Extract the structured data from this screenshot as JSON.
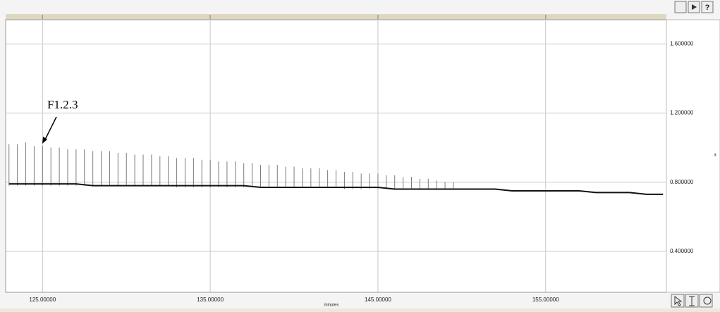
{
  "chart_data": {
    "type": "spike",
    "x_label": "minutes",
    "y_label": "a",
    "annotation": "F1.2.3",
    "xlim": [
      122.8,
      162.2
    ],
    "ylim": [
      0.163,
      1.74
    ],
    "xticks": [
      {
        "value": 125,
        "label": "125.00000"
      },
      {
        "value": 135,
        "label": "135.00000"
      },
      {
        "value": 145,
        "label": "145.00000"
      },
      {
        "value": 155,
        "label": "155.00000"
      }
    ],
    "yticks": [
      {
        "value": 0.4,
        "label": "0.400000"
      },
      {
        "value": 0.8,
        "label": "0.800000"
      },
      {
        "value": 1.2,
        "label": "1.200000"
      },
      {
        "value": 1.6,
        "label": "1.600000"
      }
    ],
    "grid": true,
    "x": [
      123,
      123.5,
      124,
      124.5,
      125,
      125.5,
      126,
      126.5,
      127,
      127.5,
      128,
      128.5,
      129,
      129.5,
      130,
      130.5,
      131,
      131.5,
      132,
      132.5,
      133,
      133.5,
      134,
      134.5,
      135,
      135.5,
      136,
      136.5,
      137,
      137.5,
      138,
      138.5,
      139,
      139.5,
      140,
      140.5,
      141,
      141.5,
      142,
      142.5,
      143,
      143.5,
      144,
      144.5,
      145,
      145.5,
      146,
      146.5,
      147,
      147.5,
      148,
      148.5,
      149,
      149.5
    ],
    "series": [
      {
        "color": "#7a7a7a",
        "values": [
          1.02,
          1.02,
          1.03,
          1.01,
          1.01,
          1.0,
          1.0,
          0.99,
          0.99,
          0.99,
          0.98,
          0.98,
          0.98,
          0.97,
          0.97,
          0.96,
          0.96,
          0.96,
          0.95,
          0.95,
          0.94,
          0.94,
          0.94,
          0.93,
          0.93,
          0.92,
          0.92,
          0.92,
          0.91,
          0.91,
          0.9,
          0.9,
          0.9,
          0.89,
          0.89,
          0.88,
          0.88,
          0.88,
          0.87,
          0.87,
          0.86,
          0.86,
          0.85,
          0.85,
          0.85,
          0.84,
          0.84,
          0.83,
          0.83,
          0.82,
          0.82,
          0.81,
          0.8,
          0.8
        ]
      },
      {
        "color": "#7a7a7a",
        "values": [
          0.78,
          0.78,
          0.78,
          0.78,
          0.78,
          0.78,
          0.78,
          0.78,
          0.78,
          0.78,
          0.78,
          0.78,
          0.78,
          0.78,
          0.78,
          0.78,
          0.78,
          0.78,
          0.78,
          0.78,
          0.77,
          0.77,
          0.77,
          0.77,
          0.77,
          0.77,
          0.77,
          0.77,
          0.77,
          0.77,
          0.77,
          0.77,
          0.77,
          0.77,
          0.77,
          0.77,
          0.77,
          0.77,
          0.77,
          0.77,
          0.76,
          0.76,
          0.76,
          0.76,
          0.76,
          0.76,
          0.76,
          0.76,
          0.76,
          0.76,
          0.76,
          0.76,
          0.76,
          0.76
        ]
      }
    ],
    "baseline": {
      "color": "#111111",
      "x": [
        123,
        124,
        125,
        126,
        127,
        128,
        129,
        130,
        131,
        132,
        133,
        134,
        135,
        136,
        137,
        138,
        139,
        140,
        141,
        142,
        143,
        144,
        145,
        146,
        147,
        148,
        149,
        150,
        151,
        152,
        153,
        154,
        155,
        156,
        157,
        158,
        159,
        160,
        161,
        162
      ],
      "values": [
        0.79,
        0.79,
        0.79,
        0.79,
        0.79,
        0.78,
        0.78,
        0.78,
        0.78,
        0.78,
        0.78,
        0.78,
        0.78,
        0.78,
        0.78,
        0.77,
        0.77,
        0.77,
        0.77,
        0.77,
        0.77,
        0.77,
        0.77,
        0.76,
        0.76,
        0.76,
        0.76,
        0.76,
        0.76,
        0.76,
        0.75,
        0.75,
        0.75,
        0.75,
        0.75,
        0.74,
        0.74,
        0.74,
        0.73,
        0.73
      ]
    }
  }
}
